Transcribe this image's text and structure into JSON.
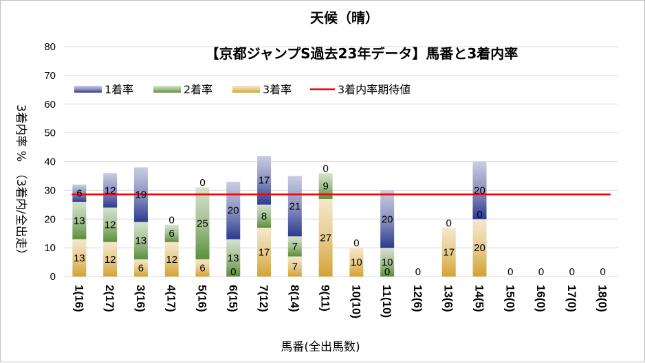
{
  "chart_data": {
    "type": "bar",
    "stacked": true,
    "title": "天候（晴）",
    "subtitle": "【京都ジャンプS過去23年データ】馬番と3着内率",
    "xlabel": "馬番(全出馬数)",
    "ylabel": "3着内率 %　（3着内/全出走）",
    "ylim": [
      0,
      80
    ],
    "yticks": [
      "0",
      "10",
      "20",
      "30",
      "40",
      "50",
      "60",
      "70",
      "80"
    ],
    "legend_position": "top-left",
    "categories": [
      "1(16)",
      "2(17)",
      "3(16)",
      "4(17)",
      "5(16)",
      "6(15)",
      "7(12)",
      "8(14)",
      "9(11)",
      "10(10)",
      "11(10)",
      "12(6)",
      "13(6)",
      "14(5)",
      "15(0)",
      "16(0)",
      "17(0)",
      "18(0)"
    ],
    "series": [
      {
        "name": "3着率",
        "color": "#d4a233",
        "values": [
          13,
          12,
          6,
          12,
          6,
          0,
          17,
          7,
          27,
          10,
          0,
          0,
          17,
          20,
          0,
          0,
          0,
          0
        ],
        "labels": [
          "13",
          "12",
          "6",
          "12",
          "6",
          "0",
          "17",
          "7",
          "27",
          "10",
          "0",
          "0",
          "17",
          "20",
          "0",
          "0",
          "0",
          "0"
        ]
      },
      {
        "name": "2着率",
        "color": "#5b8f3a",
        "values": [
          13,
          12,
          13,
          6,
          25,
          13,
          8,
          7,
          9,
          0,
          10,
          0,
          0,
          0,
          0,
          0,
          0,
          0
        ],
        "labels": [
          "13",
          "12",
          "13",
          "6",
          "25",
          "13",
          "8",
          "7",
          "9",
          "0",
          "10",
          "",
          "0",
          "0",
          "",
          "",
          "",
          ""
        ]
      },
      {
        "name": "1着率",
        "color": "#2c3a8f",
        "values": [
          6,
          12,
          19,
          0,
          0,
          20,
          17,
          21,
          0,
          0,
          20,
          0,
          0,
          20,
          0,
          0,
          0,
          0
        ],
        "labels": [
          "6",
          "12",
          "19",
          "0",
          "0",
          "20",
          "17",
          "21",
          "0",
          "",
          "20",
          "",
          "",
          "20",
          "",
          "",
          "",
          ""
        ]
      }
    ],
    "expected_line": {
      "name": "3着内率期待値",
      "value": 28.6,
      "color": "#ff0000"
    }
  }
}
